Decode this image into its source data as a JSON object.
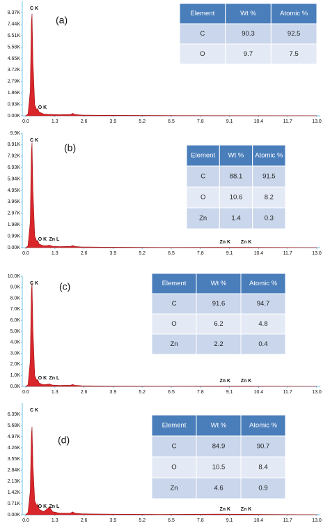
{
  "chart_data": [
    {
      "type": "area",
      "label": "(a)",
      "color": "#d9262b",
      "x": [
        0,
        0.1,
        0.2,
        0.25,
        0.28,
        0.32,
        0.4,
        0.5,
        0.53,
        0.6,
        0.8,
        1.0,
        1.5,
        2.0,
        2.1,
        2.2,
        2.5,
        3.5,
        6,
        10,
        13
      ],
      "values": [
        0,
        150,
        2000,
        7500,
        8300,
        4500,
        900,
        450,
        600,
        300,
        150,
        120,
        90,
        110,
        200,
        100,
        60,
        40,
        20,
        10,
        5
      ],
      "xlim": [
        0,
        13
      ],
      "ylim": [
        0,
        9300
      ],
      "xticks": [
        {
          "value": 0,
          "label": "0.0"
        },
        1.3,
        2.6,
        3.9,
        5.2,
        6.5,
        7.8,
        9.1,
        10.4,
        11.7,
        {
          "value": 13,
          "label": "13.0"
        }
      ],
      "yticks": [
        {
          "value": 0,
          "label": "0.00K"
        },
        {
          "value": 930,
          "label": "0.93K"
        },
        {
          "value": 1860,
          "label": "1.86K"
        },
        {
          "value": 2790,
          "label": "2.79K"
        },
        {
          "value": 3720,
          "label": "3.72K"
        },
        {
          "value": 4650,
          "label": "4.65K"
        },
        {
          "value": 5580,
          "label": "5.58K"
        },
        {
          "value": 6510,
          "label": "6.51K"
        },
        {
          "value": 7440,
          "label": "7.44K"
        },
        {
          "value": 8370,
          "label": "8.37K"
        }
      ],
      "annotations": [
        {
          "text": "C K",
          "x": 0.28
        },
        {
          "text": "O K",
          "x": 0.52
        }
      ],
      "table": {
        "header": [
          "Element",
          "Wt %",
          "Atomic %"
        ],
        "rows": [
          [
            "C",
            90.3,
            92.5
          ],
          [
            "O",
            9.7,
            7.5
          ]
        ]
      }
    },
    {
      "type": "area",
      "label": "(b)",
      "color": "#d9262b",
      "x": [
        0,
        0.1,
        0.2,
        0.25,
        0.28,
        0.32,
        0.4,
        0.5,
        0.53,
        0.6,
        0.8,
        1.0,
        1.05,
        1.2,
        1.5,
        2.0,
        2.1,
        2.2,
        2.5,
        3.5,
        6,
        8.63,
        9.57,
        13
      ],
      "values": [
        0,
        150,
        2200,
        8200,
        9100,
        5000,
        1000,
        500,
        650,
        300,
        160,
        190,
        220,
        120,
        90,
        110,
        180,
        100,
        60,
        40,
        20,
        30,
        25,
        5
      ],
      "xlim": [
        0,
        13
      ],
      "ylim": [
        0,
        9900
      ],
      "xticks": [
        {
          "value": 0,
          "label": "0.0"
        },
        1.3,
        2.6,
        3.9,
        5.2,
        6.5,
        7.8,
        9.1,
        10.4,
        11.7,
        {
          "value": 13,
          "label": "13.0"
        }
      ],
      "yticks": [
        {
          "value": 0,
          "label": "0.00K"
        },
        {
          "value": 990,
          "label": "0.99K"
        },
        {
          "value": 1980,
          "label": "1.98K"
        },
        {
          "value": 2970,
          "label": "2.97K"
        },
        {
          "value": 3960,
          "label": "3.96K"
        },
        {
          "value": 4950,
          "label": "4.95K"
        },
        {
          "value": 5940,
          "label": "5.94K"
        },
        {
          "value": 6930,
          "label": "6.93K"
        },
        {
          "value": 7920,
          "label": "7.92K"
        },
        {
          "value": 8910,
          "label": "8.91K"
        },
        {
          "value": 9900,
          "label": "9.9K"
        }
      ],
      "annotations": [
        {
          "text": "C K",
          "x": 0.28
        },
        {
          "text": "O K",
          "x": 0.52
        },
        {
          "text": "Zn L",
          "x": 1.01
        },
        {
          "text": "Zn K",
          "x": 8.63
        },
        {
          "text": "Zn K",
          "x": 9.57
        }
      ],
      "table": {
        "header": [
          "Element",
          "Wt %",
          "Atomic %"
        ],
        "rows": [
          [
            "C",
            88.1,
            91.5
          ],
          [
            "O",
            10.6,
            8.2
          ],
          [
            "Zn",
            1.4,
            0.3
          ]
        ]
      }
    },
    {
      "type": "area",
      "label": "(c)",
      "color": "#d9262b",
      "x": [
        0,
        0.1,
        0.2,
        0.25,
        0.28,
        0.32,
        0.4,
        0.5,
        0.53,
        0.6,
        0.8,
        1.0,
        1.05,
        1.2,
        1.5,
        2.0,
        2.1,
        2.2,
        2.5,
        3.5,
        6,
        8.63,
        9.57,
        13
      ],
      "values": [
        0,
        150,
        2300,
        8500,
        9400,
        5200,
        1000,
        500,
        650,
        300,
        160,
        200,
        230,
        120,
        90,
        110,
        180,
        100,
        60,
        40,
        20,
        30,
        25,
        5
      ],
      "xlim": [
        0,
        13
      ],
      "ylim": [
        0,
        10000
      ],
      "xticks": [
        {
          "value": 0,
          "label": "0.0"
        },
        1.3,
        2.6,
        3.9,
        5.2,
        6.5,
        7.8,
        9.1,
        10.4,
        11.7,
        {
          "value": 13,
          "label": "13.0"
        }
      ],
      "yticks": [
        {
          "value": 0,
          "label": "0.0K"
        },
        {
          "value": 1000,
          "label": "1.0K"
        },
        {
          "value": 2000,
          "label": "2.0K"
        },
        {
          "value": 3000,
          "label": "3.0K"
        },
        {
          "value": 4000,
          "label": "4.0K"
        },
        {
          "value": 5000,
          "label": "5.0K"
        },
        {
          "value": 6000,
          "label": "6.0K"
        },
        {
          "value": 7000,
          "label": "7.0K"
        },
        {
          "value": 8000,
          "label": "8.0K"
        },
        {
          "value": 9000,
          "label": "9.0K"
        },
        {
          "value": 10000,
          "label": "10.0K"
        }
      ],
      "annotations": [
        {
          "text": "C K",
          "x": 0.28
        },
        {
          "text": "O K",
          "x": 0.52
        },
        {
          "text": "Zn L",
          "x": 1.01
        },
        {
          "text": "Zn K",
          "x": 8.63
        },
        {
          "text": "Zn K",
          "x": 9.57
        }
      ],
      "table": {
        "header": [
          "Element",
          "Wt %",
          "Atomic %"
        ],
        "rows": [
          [
            "C",
            91.6,
            94.7
          ],
          [
            "O",
            6.2,
            4.8
          ],
          [
            "Zn",
            2.2,
            0.4
          ]
        ]
      }
    },
    {
      "type": "area",
      "label": "(d)",
      "color": "#d9262b",
      "x": [
        0,
        0.1,
        0.2,
        0.25,
        0.28,
        0.32,
        0.4,
        0.5,
        0.53,
        0.6,
        0.8,
        1.0,
        1.05,
        1.2,
        1.5,
        2.0,
        2.1,
        2.2,
        2.5,
        3.5,
        6,
        8.63,
        9.57,
        13
      ],
      "values": [
        0,
        150,
        1500,
        5000,
        5600,
        3200,
        900,
        550,
        700,
        350,
        200,
        420,
        500,
        200,
        100,
        110,
        180,
        100,
        60,
        40,
        20,
        40,
        30,
        5
      ],
      "xlim": [
        0,
        13
      ],
      "ylim": [
        0,
        7100
      ],
      "xticks": [
        {
          "value": 0,
          "label": "0.0"
        },
        1.3,
        2.6,
        3.9,
        5.2,
        6.5,
        7.8,
        9.1,
        10.4,
        11.7,
        {
          "value": 13,
          "label": "13.0"
        }
      ],
      "yticks": [
        {
          "value": 0,
          "label": "0.00K"
        },
        {
          "value": 710,
          "label": "0.71K"
        },
        {
          "value": 1420,
          "label": "1.42K"
        },
        {
          "value": 2130,
          "label": "2.13K"
        },
        {
          "value": 2840,
          "label": "2.84K"
        },
        {
          "value": 3550,
          "label": "3.55K"
        },
        {
          "value": 4260,
          "label": "4.26K"
        },
        {
          "value": 4970,
          "label": "4.97K"
        },
        {
          "value": 5680,
          "label": "5.68K"
        },
        {
          "value": 6390,
          "label": "6.39K"
        }
      ],
      "annotations": [
        {
          "text": "C K",
          "x": 0.28
        },
        {
          "text": "O K",
          "x": 0.52
        },
        {
          "text": "Zn L",
          "x": 1.01
        },
        {
          "text": "Zn K",
          "x": 8.63
        },
        {
          "text": "Zn K",
          "x": 9.57
        }
      ],
      "table": {
        "header": [
          "Element",
          "Wt %",
          "Atomic %"
        ],
        "rows": [
          [
            "C",
            84.9,
            90.7
          ],
          [
            "O",
            10.5,
            8.4
          ],
          [
            "Zn",
            4.6,
            0.9
          ]
        ]
      }
    }
  ]
}
